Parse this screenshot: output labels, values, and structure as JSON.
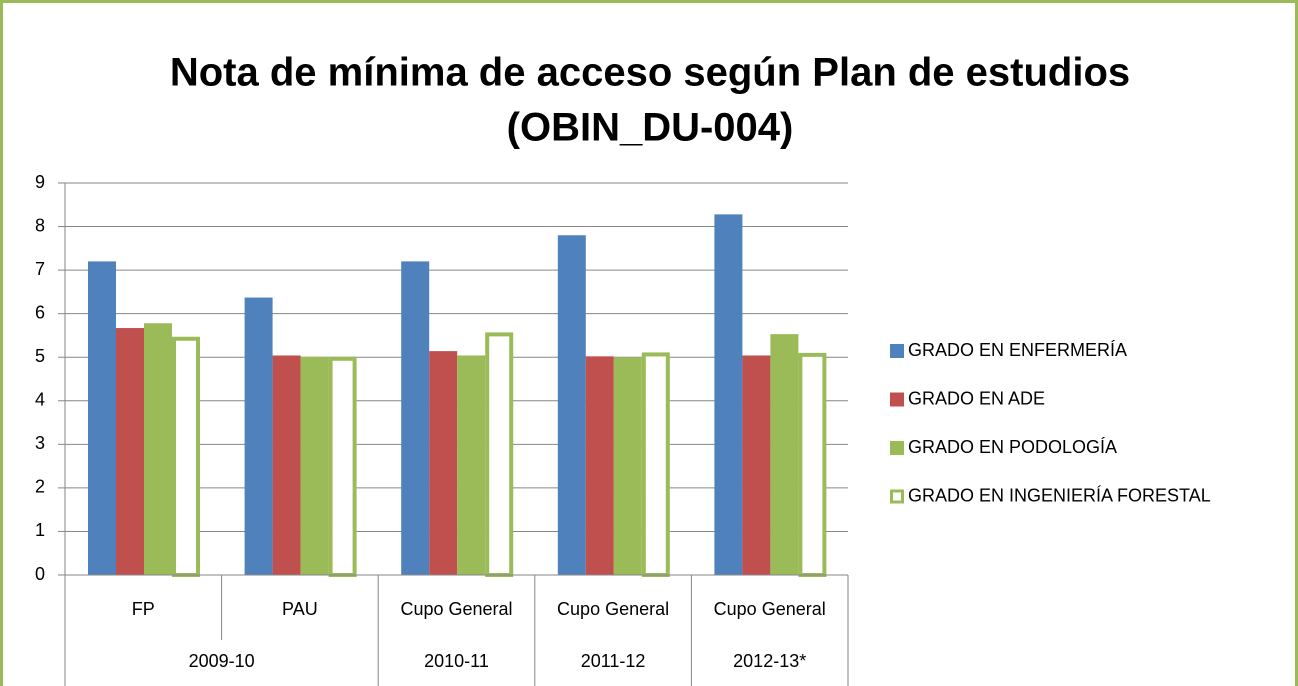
{
  "chart_data": {
    "type": "bar",
    "title": "Nota de mínima de acceso según Plan de estudios",
    "subtitle": "(OBIN_DU-004)",
    "groups": [
      {
        "name": "2009-10",
        "categories": [
          "FP",
          "PAU"
        ]
      },
      {
        "name": "2010-11",
        "categories": [
          "Cupo General"
        ]
      },
      {
        "name": "2011-12",
        "categories": [
          "Cupo General"
        ]
      },
      {
        "name": "2012-13*",
        "categories": [
          "Cupo General"
        ]
      }
    ],
    "series": [
      {
        "name": "GRADO EN ENFERMERÍA",
        "color": "#4f81bd",
        "fill": "#4f81bd",
        "values": [
          7.2,
          6.37,
          7.2,
          7.8,
          8.28
        ]
      },
      {
        "name": "GRADO EN ADE",
        "color": "#c0504d",
        "fill": "#c0504d",
        "values": [
          5.67,
          5.04,
          5.14,
          5.02,
          5.04
        ]
      },
      {
        "name": "GRADO EN PODOLOGÍA",
        "color": "#9bbb59",
        "fill": "#9bbb59",
        "values": [
          5.78,
          5.01,
          5.04,
          5.0,
          5.53
        ]
      },
      {
        "name": "GRADO EN INGENIERÍA FORESTAL",
        "color": "#9bbb59",
        "fill": "#ffffff",
        "values": [
          5.47,
          5.01,
          5.57,
          5.11,
          5.1
        ]
      }
    ],
    "ylim": [
      0,
      9
    ],
    "yticks": [
      0,
      1,
      2,
      3,
      4,
      5,
      6,
      7,
      8,
      9
    ],
    "grid": true,
    "legend": "right"
  }
}
